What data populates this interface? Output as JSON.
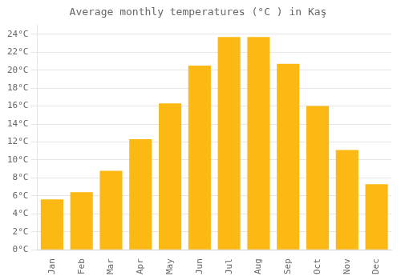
{
  "chart_data": {
    "type": "bar",
    "title": "Average monthly temperatures (°C ) in Kaş",
    "categories": [
      "Jan",
      "Feb",
      "Mar",
      "Apr",
      "May",
      "Jun",
      "Jul",
      "Aug",
      "Sep",
      "Oct",
      "Nov",
      "Dec"
    ],
    "values": [
      5.6,
      6.4,
      8.8,
      12.3,
      16.3,
      20.5,
      23.7,
      23.7,
      20.7,
      16.0,
      11.1,
      7.3
    ],
    "color": "#FDB913",
    "ylim": [
      0,
      25
    ],
    "yticks": [
      {
        "value": 0,
        "label": "0°C"
      },
      {
        "value": 2,
        "label": "2°C"
      },
      {
        "value": 4,
        "label": "4°C"
      },
      {
        "value": 6,
        "label": "6°C"
      },
      {
        "value": 8,
        "label": "8°C"
      },
      {
        "value": 10,
        "label": "10°C"
      },
      {
        "value": 12,
        "label": "12°C"
      },
      {
        "value": 14,
        "label": "14°C"
      },
      {
        "value": 16,
        "label": "16°C"
      },
      {
        "value": 18,
        "label": "18°C"
      },
      {
        "value": 20,
        "label": "20°C"
      },
      {
        "value": 22,
        "label": "22°C"
      },
      {
        "value": 24,
        "label": "24°C"
      }
    ],
    "grid": true
  }
}
